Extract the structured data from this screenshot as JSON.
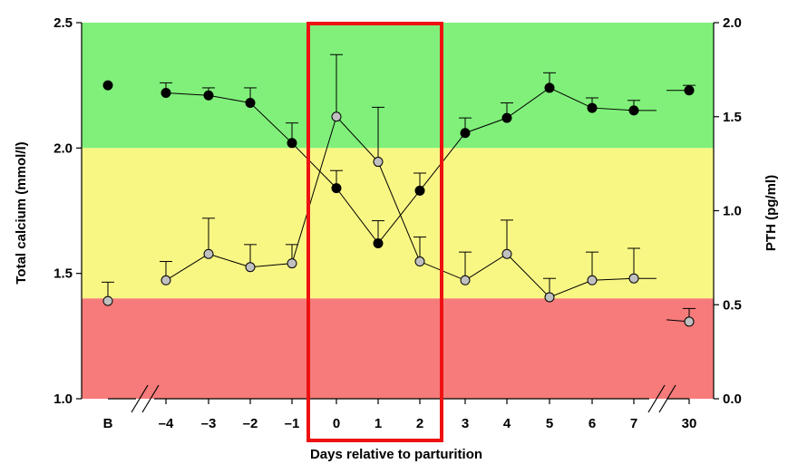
{
  "chart_data": {
    "type": "line",
    "xlabel": "Days relative to parturition",
    "ylabel_left": "Total calcium (mmol/l)",
    "ylabel_right": "PTH (pg/ml)",
    "categories": [
      "B",
      "–4",
      "–3",
      "–2",
      "–1",
      "0",
      "1",
      "2",
      "3",
      "4",
      "5",
      "6",
      "7",
      "30"
    ],
    "left_axis": {
      "min": 1.0,
      "max": 2.5,
      "ticks": [
        "1.0",
        "1.5",
        "2.0",
        "2.5"
      ],
      "tick_values": [
        1.0,
        1.5,
        2.0,
        2.5
      ]
    },
    "right_axis": {
      "min": 0.0,
      "max": 2.0,
      "ticks": [
        "0.0",
        "0.5",
        "1.0",
        "1.5",
        "2.0"
      ],
      "tick_values": [
        0.0,
        0.5,
        1.0,
        1.5,
        2.0
      ]
    },
    "bands": [
      {
        "from": 2.0,
        "to": 2.5,
        "color": "#80f07a"
      },
      {
        "from": 1.4,
        "to": 2.0,
        "color": "#f9f784"
      },
      {
        "from": 1.0,
        "to": 1.4,
        "color": "#f67b7a"
      }
    ],
    "highlight": {
      "from_category": "0",
      "to_category": "2",
      "color": "#ee1111"
    },
    "grid": false,
    "legend": "none",
    "series": [
      {
        "axis": "left",
        "marker_color": "#000000",
        "values": [
          2.25,
          2.22,
          2.21,
          2.18,
          2.02,
          1.84,
          1.62,
          1.83,
          2.06,
          2.12,
          2.24,
          2.16,
          2.15,
          2.23
        ],
        "errors": [
          0.0,
          0.04,
          0.03,
          0.06,
          0.08,
          0.07,
          0.09,
          0.07,
          0.06,
          0.06,
          0.06,
          0.04,
          0.04,
          0.02
        ]
      },
      {
        "axis": "right",
        "marker_color": "#c0c0c0",
        "values": [
          0.52,
          0.63,
          0.77,
          0.7,
          0.72,
          1.5,
          1.26,
          0.73,
          0.63,
          0.77,
          0.54,
          0.63,
          0.64,
          0.41
        ],
        "errors": [
          0.1,
          0.1,
          0.19,
          0.12,
          0.1,
          0.33,
          0.29,
          0.13,
          0.15,
          0.18,
          0.1,
          0.15,
          0.16,
          0.07
        ]
      }
    ]
  }
}
